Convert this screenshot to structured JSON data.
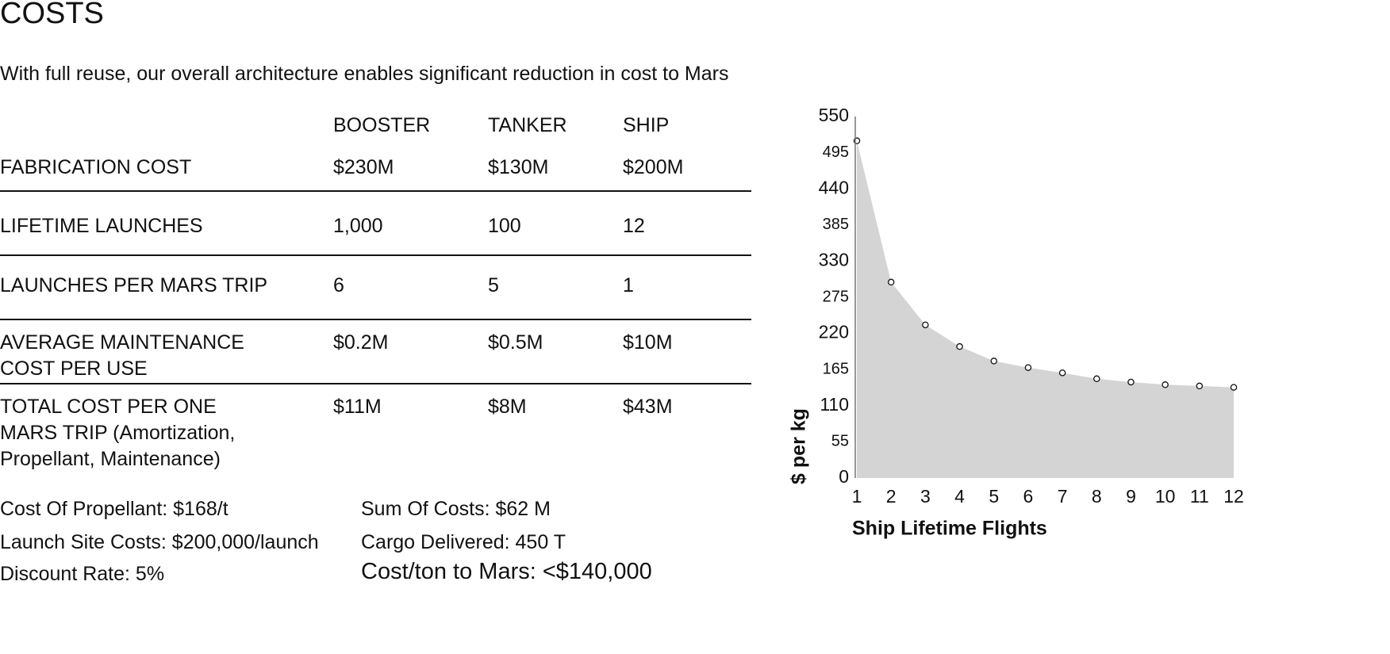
{
  "header": {
    "title": "COSTS",
    "subtitle": "With full reuse, our overall architecture enables significant reduction in cost to Mars"
  },
  "table": {
    "columns": [
      "BOOSTER",
      "TANKER",
      "SHIP"
    ],
    "rows": [
      {
        "label": [
          "FABRICATION COST"
        ],
        "cells": [
          "$230M",
          "$130M",
          "$200M"
        ]
      },
      {
        "label": [
          "LIFETIME LAUNCHES"
        ],
        "cells": [
          "1,000",
          "100",
          "12"
        ]
      },
      {
        "label": [
          "LAUNCHES PER MARS TRIP"
        ],
        "cells": [
          "6",
          "5",
          "1"
        ]
      },
      {
        "label": [
          "AVERAGE MAINTENANCE",
          "COST PER USE"
        ],
        "cells": [
          "$0.2M",
          "$0.5M",
          "$10M"
        ]
      },
      {
        "label": [
          "TOTAL COST PER ONE",
          "MARS TRIP (Amortization,",
          "Propellant, Maintenance)"
        ],
        "cells": [
          "$11M",
          "$8M",
          "$43M"
        ]
      }
    ]
  },
  "notes": {
    "left": [
      "Cost Of Propellant: $168/t",
      "Launch Site Costs: $200,000/launch",
      "Discount Rate: 5%"
    ],
    "right": [
      "Sum Of Costs: $62 M",
      "Cargo Delivered: 450 T",
      "Cost/ton to Mars: <$140,000"
    ]
  },
  "chart_data": {
    "type": "area",
    "x_label": "Ship Lifetime Flights",
    "y_label": "$ per kg",
    "x": [
      1,
      2,
      3,
      4,
      5,
      6,
      7,
      8,
      9,
      10,
      11,
      12
    ],
    "values": [
      513,
      298,
      233,
      200,
      178,
      168,
      160,
      151,
      146,
      142,
      140,
      138
    ],
    "color": "#d4d4d4",
    "marker_color": "#ffffff",
    "xlim": [
      1,
      12.3
    ],
    "xticks": [
      1,
      2,
      3,
      4,
      5,
      6,
      7,
      8,
      9,
      10,
      11,
      12
    ],
    "ylim": [
      0,
      550
    ],
    "yticks": [
      0,
      55,
      110,
      165,
      220,
      275,
      330,
      385,
      440,
      495,
      550
    ],
    "grid": false
  }
}
